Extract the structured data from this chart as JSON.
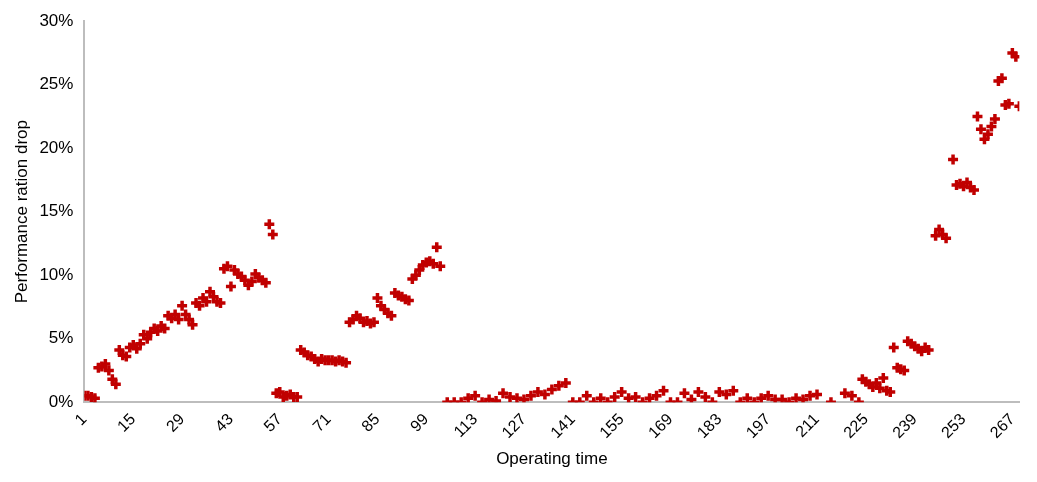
{
  "chart_data": {
    "type": "scatter",
    "xlabel": "Operating time",
    "ylabel": "Performance ration drop",
    "xlim": [
      1,
      269
    ],
    "xticks": [
      1,
      15,
      29,
      43,
      57,
      71,
      85,
      99,
      113,
      127,
      141,
      155,
      169,
      183,
      197,
      211,
      225,
      239,
      253,
      267
    ],
    "ylim": [
      0,
      30
    ],
    "yticks": [
      {
        "value": 0,
        "label": "0%"
      },
      {
        "value": 5,
        "label": "5%"
      },
      {
        "value": 10,
        "label": "10%"
      },
      {
        "value": 15,
        "label": "15%"
      },
      {
        "value": 20,
        "label": "20%"
      },
      {
        "value": 25,
        "label": "25%"
      },
      {
        "value": 30,
        "label": "30%"
      }
    ],
    "grid": false,
    "legend": false,
    "marker": "cross",
    "series": [
      {
        "color": "#c00000",
        "x": [
          1,
          2,
          3,
          4,
          5,
          6,
          7,
          8,
          9,
          10,
          11,
          12,
          13,
          14,
          15,
          16,
          17,
          18,
          19,
          20,
          21,
          22,
          23,
          24,
          25,
          26,
          27,
          28,
          29,
          30,
          31,
          32,
          33,
          34,
          35,
          36,
          37,
          38,
          39,
          40,
          41,
          42,
          43,
          44,
          45,
          46,
          47,
          48,
          49,
          50,
          51,
          52,
          53,
          54,
          55,
          56,
          57,
          58,
          59,
          60,
          61,
          62,
          63,
          64,
          65,
          66,
          67,
          68,
          69,
          70,
          71,
          72,
          73,
          74,
          75,
          76,
          77,
          78,
          79,
          80,
          81,
          82,
          83,
          84,
          85,
          86,
          87,
          88,
          89,
          90,
          91,
          92,
          93,
          94,
          95,
          96,
          97,
          98,
          99,
          100,
          101,
          102,
          103,
          105,
          107,
          109,
          111,
          113,
          115,
          117,
          119,
          121,
          123,
          125,
          127,
          129,
          131,
          133,
          135,
          137,
          139,
          141,
          143,
          145,
          147,
          149,
          151,
          153,
          155,
          157,
          159,
          161,
          163,
          165,
          167,
          169,
          171,
          173,
          175,
          177,
          179,
          181,
          183,
          185,
          187,
          189,
          191,
          193,
          195,
          197,
          199,
          201,
          203,
          205,
          207,
          209,
          211,
          215,
          219,
          221,
          223,
          224,
          225,
          226,
          227,
          228,
          229,
          230,
          231,
          232,
          233,
          234,
          235,
          236,
          237,
          238,
          239,
          240,
          241,
          242,
          243,
          245,
          246,
          247,
          248,
          250,
          251,
          252,
          253,
          254,
          255,
          256,
          257,
          258,
          259,
          260,
          261,
          262,
          263,
          264,
          265,
          266,
          267,
          268,
          269
        ],
        "values": [
          0.5,
          0.5,
          0.4,
          0.3,
          2.7,
          2.8,
          3.0,
          2.5,
          1.8,
          1.4,
          4.1,
          3.7,
          3.6,
          4.3,
          4.5,
          4.2,
          4.6,
          5.3,
          5.0,
          5.5,
          5.8,
          5.6,
          6.0,
          5.8,
          6.8,
          6.6,
          6.9,
          6.5,
          7.6,
          6.9,
          6.5,
          6.1,
          7.8,
          7.6,
          8.2,
          7.9,
          8.7,
          8.3,
          7.9,
          7.8,
          10.5,
          10.7,
          9.1,
          10.4,
          10.1,
          9.9,
          9.6,
          9.2,
          9.5,
          10.1,
          9.8,
          9.6,
          9.4,
          14.0,
          13.2,
          0.7,
          0.8,
          0.4,
          0.5,
          0.6,
          0.4,
          0.4,
          4.1,
          3.9,
          3.7,
          3.6,
          3.4,
          3.2,
          3.4,
          3.3,
          3.3,
          3.3,
          3.2,
          3.3,
          3.2,
          3.1,
          6.3,
          6.5,
          6.8,
          6.6,
          6.3,
          6.4,
          6.2,
          6.3,
          8.2,
          7.6,
          7.3,
          7.0,
          6.8,
          8.6,
          8.4,
          8.3,
          8.1,
          8.0,
          9.7,
          10.0,
          10.4,
          10.8,
          11.0,
          11.1,
          10.9,
          12.2,
          10.7,
          0,
          0,
          0,
          0.3,
          0.5,
          0,
          0.2,
          0.1,
          0.7,
          0.4,
          0.3,
          0.2,
          0.5,
          0.8,
          0.6,
          1.0,
          1.3,
          1.5,
          0,
          0,
          0.5,
          0,
          0.3,
          0,
          0.4,
          0.8,
          0.3,
          0.4,
          0,
          0.3,
          0.5,
          0.9,
          0,
          0,
          0.7,
          0.2,
          0.8,
          0.4,
          0,
          0.8,
          0.6,
          0.9,
          0,
          0.3,
          0,
          0.3,
          0.5,
          0.2,
          0.2,
          0,
          0.3,
          0.2,
          0.5,
          0.6,
          0,
          0.7,
          0.5,
          0,
          1.8,
          1.6,
          1.4,
          1.2,
          1.5,
          1.1,
          1.9,
          0.9,
          0.8,
          4.3,
          2.7,
          2.6,
          2.5,
          4.8,
          4.6,
          4.4,
          4.2,
          4.0,
          4.3,
          4.1,
          13.1,
          13.6,
          13.2,
          12.9,
          19.1,
          17.1,
          17.2,
          17.0,
          17.3,
          16.9,
          16.7,
          22.5,
          21.5,
          20.7,
          21.1,
          21.7,
          22.3,
          25.3,
          25.5,
          23.4,
          23.5,
          27.5,
          27.2,
          23.3
        ]
      }
    ]
  }
}
